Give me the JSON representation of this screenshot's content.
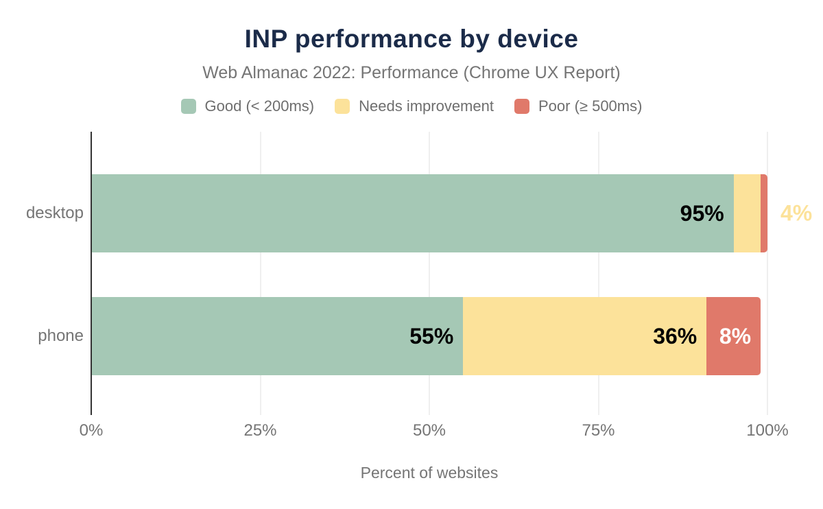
{
  "title": "INP performance by device",
  "subtitle": "Web Almanac 2022: Performance (Chrome UX Report)",
  "x_axis": {
    "label": "Percent of websites",
    "tick_labels": [
      "0%",
      "25%",
      "50%",
      "75%",
      "100%"
    ]
  },
  "legend": {
    "items": [
      "Good (< 200ms)",
      "Needs improvement",
      "Poor (≥ 500ms)"
    ]
  },
  "chart_data": {
    "type": "bar",
    "orientation": "horizontal",
    "stacked": true,
    "title": "INP performance by device",
    "subtitle": "Web Almanac 2022: Performance (Chrome UX Report)",
    "xlabel": "Percent of websites",
    "ylabel": "",
    "xlim": [
      0,
      100
    ],
    "x_tick_values": [
      0,
      25,
      50,
      75,
      100
    ],
    "x_tick_labels": [
      "0%",
      "25%",
      "50%",
      "75%",
      "100%"
    ],
    "grid": true,
    "legend_position": "top",
    "categories": [
      "desktop",
      "phone"
    ],
    "series": [
      {
        "name": "Good (< 200ms)",
        "color": "#a5c8b5",
        "values": [
          95,
          55
        ],
        "data_labels": [
          "95%",
          "55%"
        ],
        "label_placement": [
          "inside",
          "inside"
        ],
        "label_colors": [
          "#000000",
          "#000000"
        ]
      },
      {
        "name": "Needs improvement",
        "color": "#fce29a",
        "values": [
          4,
          36
        ],
        "data_labels": [
          "4%",
          "36%"
        ],
        "label_placement": [
          "outside",
          "inside"
        ],
        "label_colors": [
          "#fce29a",
          "#000000"
        ]
      },
      {
        "name": "Poor (≥ 500ms)",
        "color": "#e0796a",
        "values": [
          1,
          8
        ],
        "data_labels": [
          "",
          "8%"
        ],
        "label_placement": [
          "none",
          "inside"
        ],
        "label_colors": [
          "",
          "#ffffff"
        ]
      }
    ]
  },
  "style": {
    "title_color": "#1b2b49",
    "subtitle_color": "#757575",
    "axis_text_color": "#757575",
    "legend_text_color": "#6e6e6e",
    "axis_line_color": "#333333",
    "grid_color": "#efefef",
    "background": "#ffffff"
  }
}
